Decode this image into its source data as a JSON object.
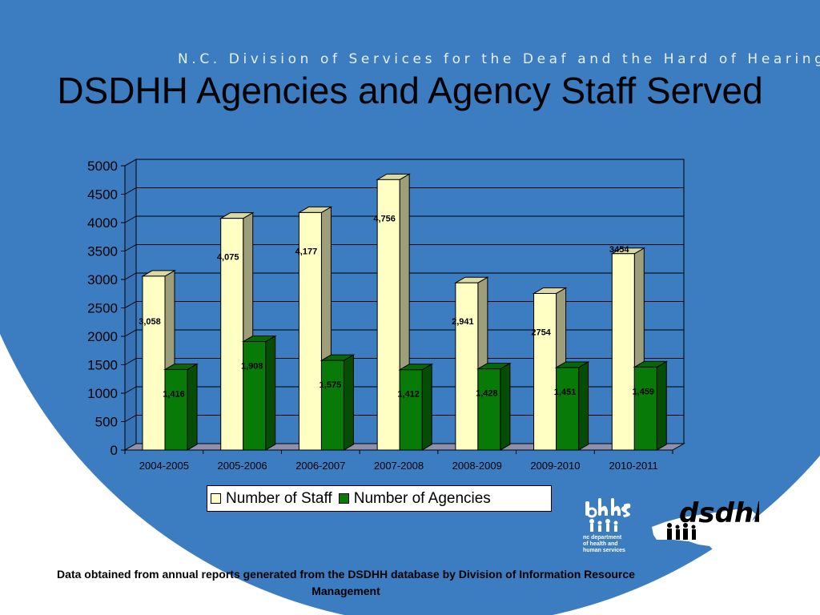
{
  "slide": {
    "header_banner": "N.C. Division of Services for the Deaf and the Hard of Hearing",
    "title": "DSDHH Agencies and Agency Staff Served",
    "footnote": "Data obtained from annual reports generated from the DSDHH database by Division of Information Resource Management",
    "logos": {
      "dhhs_caption": [
        "nc department",
        "of health and",
        "human services"
      ],
      "dsdhh_text": "dsdhh"
    },
    "colors": {
      "background_blue": "#3c7cc0",
      "staff_bar": "#ffffc4",
      "agencies_bar": "#087a08",
      "plot_floor": "#8f8fae"
    }
  },
  "chart_data": {
    "type": "bar",
    "categories": [
      "2004-2005",
      "2005-2006",
      "2006-2007",
      "2007-2008",
      "2008-2009",
      "2009-2010",
      "2010-2011"
    ],
    "series": [
      {
        "name": "Number of Staff",
        "values": [
          3058,
          4075,
          4177,
          4756,
          2941,
          2754,
          3454
        ],
        "labels": [
          "3,058",
          "4,075",
          "4,177",
          "4,756",
          "2,941",
          "2754",
          "3454"
        ]
      },
      {
        "name": "Number of Agencies",
        "values": [
          1416,
          1908,
          1575,
          1412,
          1428,
          1451,
          1459
        ],
        "labels": [
          "1,416",
          "1,908",
          "1,575",
          "1,412",
          "1,428",
          "1,451",
          "1,459"
        ]
      }
    ],
    "y_ticks": [
      "0",
      "500",
      "1000",
      "1500",
      "2000",
      "2500",
      "3000",
      "3500",
      "4000",
      "4500",
      "5000"
    ],
    "ylim": [
      0,
      5000
    ],
    "grid": true,
    "legend_position": "bottom",
    "style": "3d-clustered-column"
  }
}
